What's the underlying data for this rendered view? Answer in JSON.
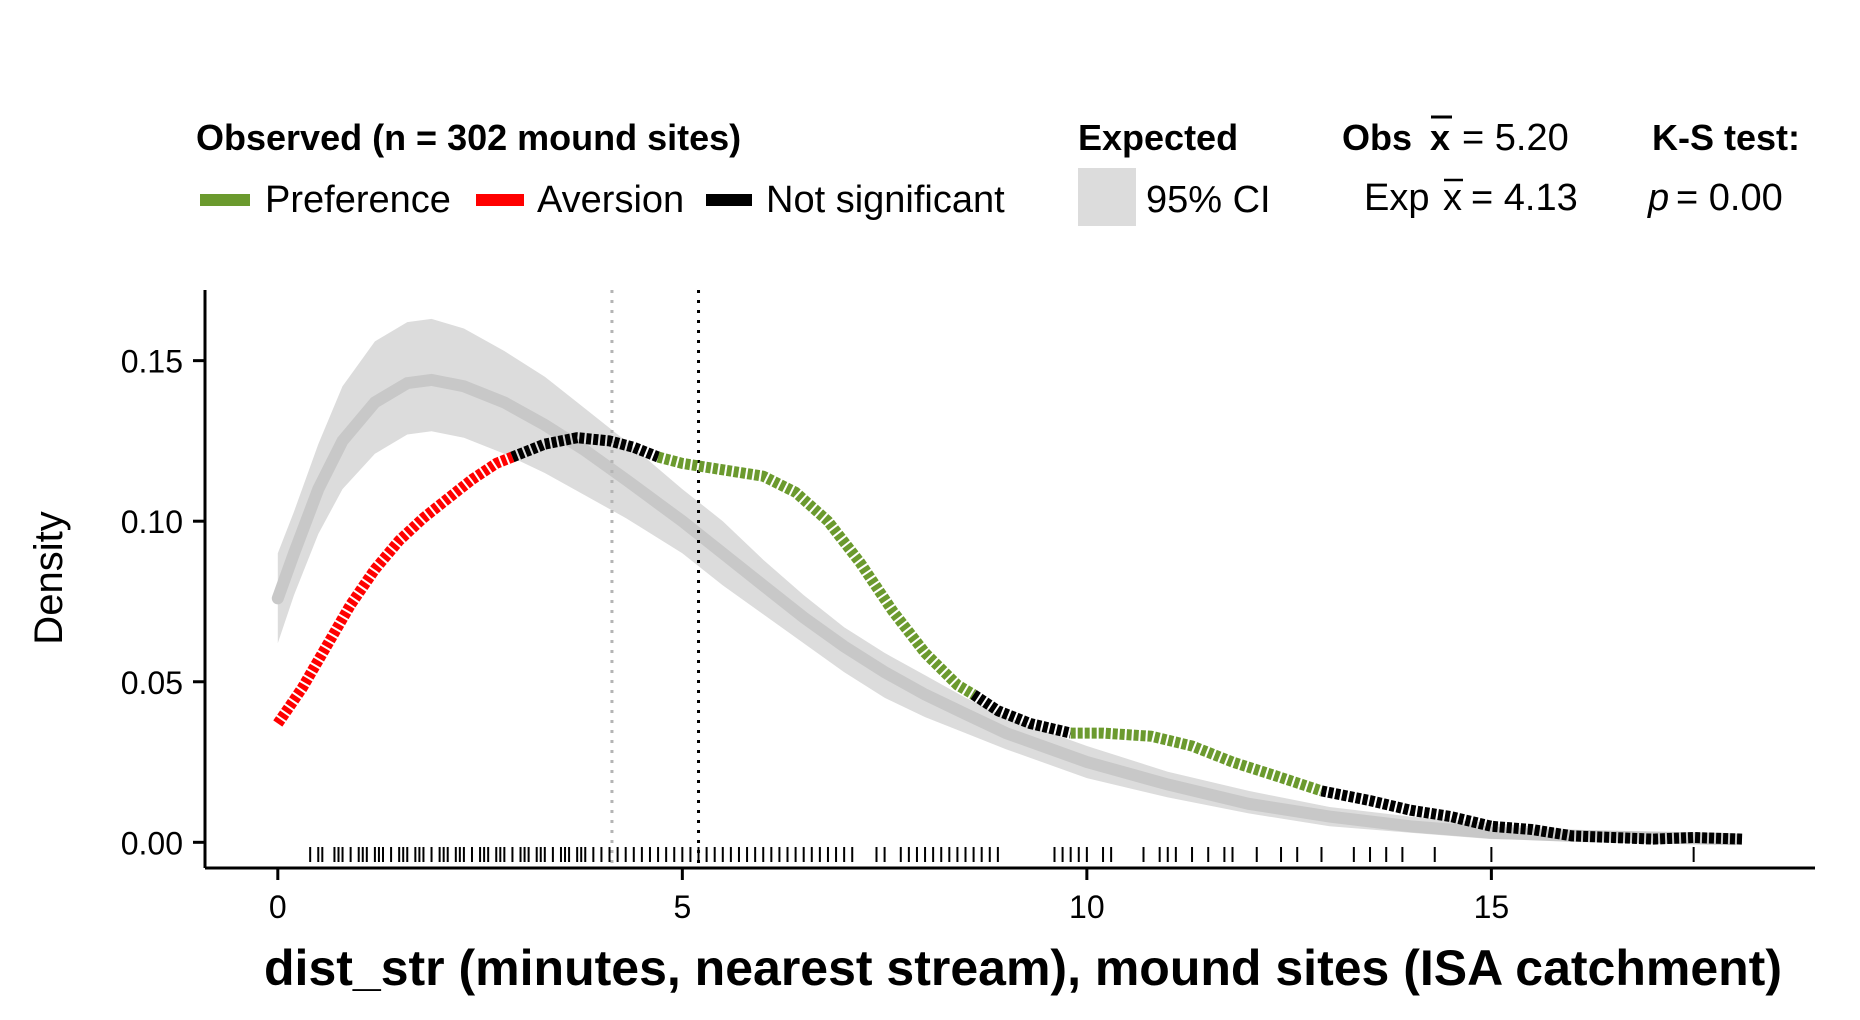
{
  "legend": {
    "observed_title": "Observed (n = 302 mound sites)",
    "preference": "Preference",
    "aversion": "Aversion",
    "not_significant": "Not significant",
    "expected_title": "Expected",
    "ci_label": "95% CI",
    "obs_mean_label": "Obs",
    "obs_mean_value": "= 5.20",
    "exp_mean_label": "Exp",
    "exp_mean_value": "= 4.13",
    "ks_title": "K-S test:",
    "ks_p_label": "p",
    "ks_p_value": "= 0.00",
    "mean_symbol": "x"
  },
  "colors": {
    "preference": "#6b9a2e",
    "aversion": "#ff0000",
    "not_significant": "#000000",
    "ci_band": "#dcdcdc",
    "expected_line": "#c8c8c8",
    "exp_mean_line": "#b4b4b4",
    "obs_mean_line": "#000000"
  },
  "chart_data": {
    "type": "line",
    "xlabel": "dist_str (minutes, nearest stream), mound sites (ISA catchment)",
    "ylabel": "Density",
    "xlim": [
      -0.9,
      19
    ],
    "ylim": [
      -0.008,
      0.172
    ],
    "x_ticks": [
      0,
      5,
      10,
      15
    ],
    "y_ticks": [
      0.0,
      0.05,
      0.1,
      0.15
    ],
    "x_tick_labels": [
      "0",
      "5",
      "10",
      "15"
    ],
    "y_tick_labels": [
      "0.00",
      "0.05",
      "0.10",
      "0.15"
    ],
    "grid": false,
    "legend_position": "top",
    "obs_mean": 5.2,
    "exp_mean": 4.13,
    "observed_segments": [
      {
        "class": "aversion",
        "points": [
          [
            0,
            0.037
          ],
          [
            0.3,
            0.048
          ],
          [
            0.6,
            0.061
          ],
          [
            0.9,
            0.074
          ],
          [
            1.2,
            0.085
          ],
          [
            1.5,
            0.094
          ],
          [
            1.8,
            0.101
          ],
          [
            2.1,
            0.107
          ],
          [
            2.4,
            0.113
          ],
          [
            2.7,
            0.118
          ],
          [
            2.9,
            0.12
          ]
        ]
      },
      {
        "class": "not_significant",
        "points": [
          [
            2.9,
            0.12
          ],
          [
            3.3,
            0.124
          ],
          [
            3.7,
            0.126
          ],
          [
            4.1,
            0.125
          ],
          [
            4.4,
            0.123
          ],
          [
            4.7,
            0.12
          ]
        ]
      },
      {
        "class": "preference",
        "points": [
          [
            4.7,
            0.12
          ],
          [
            5.0,
            0.118
          ],
          [
            5.5,
            0.116
          ],
          [
            6.0,
            0.114
          ],
          [
            6.4,
            0.109
          ],
          [
            6.8,
            0.1
          ],
          [
            7.2,
            0.087
          ],
          [
            7.6,
            0.072
          ],
          [
            8.0,
            0.059
          ],
          [
            8.4,
            0.049
          ],
          [
            8.6,
            0.046
          ]
        ]
      },
      {
        "class": "not_significant",
        "points": [
          [
            8.6,
            0.046
          ],
          [
            8.9,
            0.041
          ],
          [
            9.3,
            0.037
          ],
          [
            9.8,
            0.034
          ]
        ]
      },
      {
        "class": "preference",
        "points": [
          [
            9.8,
            0.034
          ],
          [
            10.2,
            0.034
          ],
          [
            10.8,
            0.033
          ],
          [
            11.3,
            0.03
          ],
          [
            11.8,
            0.025
          ],
          [
            12.3,
            0.021
          ],
          [
            12.9,
            0.016
          ]
        ]
      },
      {
        "class": "not_significant",
        "points": [
          [
            12.9,
            0.016
          ],
          [
            13.5,
            0.013
          ],
          [
            14.0,
            0.01
          ],
          [
            14.5,
            0.008
          ],
          [
            15.0,
            0.005
          ],
          [
            15.5,
            0.004
          ],
          [
            16.0,
            0.002
          ],
          [
            16.5,
            0.0015
          ],
          [
            17.0,
            0.001
          ],
          [
            17.5,
            0.0015
          ],
          [
            18.1,
            0.001
          ]
        ]
      }
    ],
    "expected_mean_curve": [
      [
        0,
        0.076
      ],
      [
        0.2,
        0.09
      ],
      [
        0.5,
        0.11
      ],
      [
        0.8,
        0.125
      ],
      [
        1.2,
        0.137
      ],
      [
        1.6,
        0.143
      ],
      [
        1.9,
        0.144
      ],
      [
        2.3,
        0.142
      ],
      [
        2.8,
        0.137
      ],
      [
        3.3,
        0.13
      ],
      [
        3.8,
        0.122
      ],
      [
        4.3,
        0.113
      ],
      [
        5.0,
        0.1
      ],
      [
        5.5,
        0.09
      ],
      [
        6.0,
        0.08
      ],
      [
        6.5,
        0.07
      ],
      [
        7.0,
        0.061
      ],
      [
        7.5,
        0.053
      ],
      [
        8.0,
        0.046
      ],
      [
        8.5,
        0.04
      ],
      [
        9.0,
        0.034
      ],
      [
        10.0,
        0.025
      ],
      [
        11.0,
        0.018
      ],
      [
        12.0,
        0.012
      ],
      [
        13.0,
        0.008
      ],
      [
        14.0,
        0.005
      ],
      [
        15.0,
        0.003
      ],
      [
        16.0,
        0.002
      ],
      [
        17.0,
        0.0015
      ],
      [
        18.0,
        0.001
      ]
    ],
    "expected_ci_upper": [
      [
        0,
        0.09
      ],
      [
        0.2,
        0.103
      ],
      [
        0.5,
        0.124
      ],
      [
        0.8,
        0.142
      ],
      [
        1.2,
        0.156
      ],
      [
        1.6,
        0.162
      ],
      [
        1.9,
        0.163
      ],
      [
        2.3,
        0.16
      ],
      [
        2.8,
        0.153
      ],
      [
        3.3,
        0.145
      ],
      [
        3.8,
        0.135
      ],
      [
        4.3,
        0.125
      ],
      [
        5.0,
        0.11
      ],
      [
        5.5,
        0.1
      ],
      [
        6.0,
        0.088
      ],
      [
        6.5,
        0.077
      ],
      [
        7.0,
        0.067
      ],
      [
        7.5,
        0.059
      ],
      [
        8.0,
        0.052
      ],
      [
        8.5,
        0.045
      ],
      [
        9.0,
        0.039
      ],
      [
        10.0,
        0.03
      ],
      [
        11.0,
        0.022
      ],
      [
        12.0,
        0.016
      ],
      [
        13.0,
        0.011
      ],
      [
        14.0,
        0.008
      ],
      [
        15.0,
        0.006
      ],
      [
        16.0,
        0.004
      ],
      [
        17.0,
        0.003
      ],
      [
        18.0,
        0.002
      ]
    ],
    "expected_ci_lower": [
      [
        0,
        0.062
      ],
      [
        0.2,
        0.077
      ],
      [
        0.5,
        0.096
      ],
      [
        0.8,
        0.11
      ],
      [
        1.2,
        0.121
      ],
      [
        1.6,
        0.127
      ],
      [
        1.9,
        0.128
      ],
      [
        2.3,
        0.126
      ],
      [
        2.8,
        0.121
      ],
      [
        3.3,
        0.115
      ],
      [
        3.8,
        0.108
      ],
      [
        4.3,
        0.101
      ],
      [
        5.0,
        0.09
      ],
      [
        5.5,
        0.08
      ],
      [
        6.0,
        0.071
      ],
      [
        6.5,
        0.062
      ],
      [
        7.0,
        0.053
      ],
      [
        7.5,
        0.045
      ],
      [
        8.0,
        0.039
      ],
      [
        8.5,
        0.034
      ],
      [
        9.0,
        0.029
      ],
      [
        10.0,
        0.02
      ],
      [
        11.0,
        0.014
      ],
      [
        12.0,
        0.009
      ],
      [
        13.0,
        0.005
      ],
      [
        14.0,
        0.003
      ],
      [
        15.0,
        0.001
      ],
      [
        16.0,
        0.0005
      ],
      [
        17.0,
        0.0002
      ],
      [
        18.0,
        0.0001
      ]
    ],
    "rug": [
      0.4,
      0.5,
      0.55,
      0.7,
      0.75,
      0.8,
      0.9,
      1.0,
      1.05,
      1.1,
      1.2,
      1.25,
      1.3,
      1.4,
      1.5,
      1.55,
      1.6,
      1.7,
      1.75,
      1.8,
      1.9,
      2.0,
      2.05,
      2.1,
      2.2,
      2.25,
      2.3,
      2.4,
      2.5,
      2.55,
      2.6,
      2.7,
      2.75,
      2.8,
      2.9,
      3.0,
      3.05,
      3.1,
      3.2,
      3.25,
      3.3,
      3.4,
      3.5,
      3.55,
      3.6,
      3.7,
      3.75,
      3.8,
      3.9,
      4.0,
      4.1,
      4.2,
      4.3,
      4.4,
      4.5,
      4.6,
      4.7,
      4.8,
      4.9,
      5.0,
      5.1,
      5.2,
      5.3,
      5.4,
      5.5,
      5.6,
      5.7,
      5.8,
      5.9,
      6.0,
      6.1,
      6.2,
      6.3,
      6.4,
      6.5,
      6.6,
      6.7,
      6.8,
      6.9,
      7.0,
      7.1,
      7.4,
      7.5,
      7.7,
      7.8,
      7.9,
      8.0,
      8.1,
      8.2,
      8.3,
      8.4,
      8.5,
      8.6,
      8.7,
      8.8,
      8.9,
      9.6,
      9.7,
      9.8,
      9.9,
      10.0,
      10.2,
      10.3,
      10.7,
      10.9,
      11.0,
      11.1,
      11.3,
      11.5,
      11.7,
      11.8,
      12.1,
      12.4,
      12.6,
      12.9,
      13.3,
      13.5,
      13.7,
      13.9,
      14.3,
      15.0,
      17.5
    ]
  }
}
